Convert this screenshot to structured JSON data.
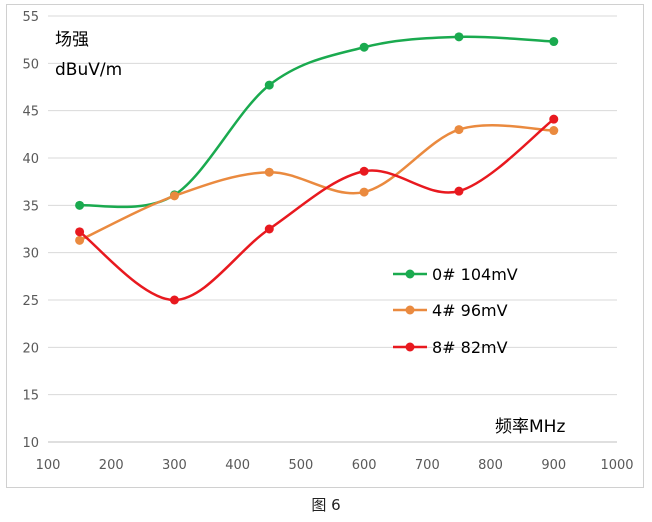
{
  "caption": "图 6",
  "chart_data": {
    "type": "line",
    "ylabel": "场强",
    "yunit": "dBuV/m",
    "xlabel": "频率MHz",
    "xlim": [
      100,
      1000
    ],
    "ylim": [
      10,
      55
    ],
    "xticks": [
      100,
      200,
      300,
      400,
      500,
      600,
      700,
      800,
      900,
      1000
    ],
    "yticks": [
      10,
      15,
      20,
      25,
      30,
      35,
      40,
      45,
      50,
      55
    ],
    "grid": "horizontal",
    "legend_position": "right",
    "series": [
      {
        "name": "0# 104mV",
        "color": "#1aaa4f",
        "x": [
          150,
          300,
          450,
          600,
          750,
          900
        ],
        "y": [
          35.0,
          36.1,
          47.7,
          51.7,
          52.8,
          52.3
        ]
      },
      {
        "name": "4# 96mV",
        "color": "#ea8a3f",
        "x": [
          150,
          300,
          450,
          600,
          750,
          900
        ],
        "y": [
          31.3,
          36.0,
          38.5,
          36.4,
          43.0,
          42.9
        ]
      },
      {
        "name": "8# 82mV",
        "color": "#e8191f",
        "x": [
          150,
          300,
          450,
          600,
          750,
          900
        ],
        "y": [
          32.2,
          25.0,
          32.5,
          38.6,
          36.5,
          44.1
        ]
      }
    ]
  }
}
